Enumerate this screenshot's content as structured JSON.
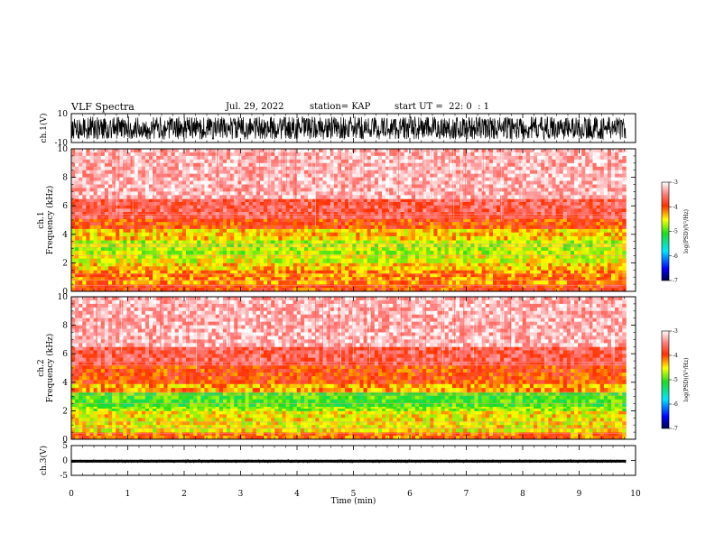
{
  "header": {
    "title": "VLF Spectra",
    "date": "Jul. 29, 2022",
    "station": "station= KAP",
    "start": "start UT =  22: 0  : 1"
  },
  "chart_data": [
    {
      "type": "line",
      "id": "ch1-waveform",
      "ylabel": "ch.1(V)",
      "ylim": [
        -10,
        10
      ],
      "yticks": [
        "10",
        "-10"
      ],
      "x_range_min": [
        0,
        9.83
      ],
      "amplitude_range_v": [
        -8,
        8
      ],
      "color": "#000000"
    },
    {
      "type": "heatmap",
      "id": "ch1-spectrogram",
      "ylabel": "ch.1\nFrequency (kHz)",
      "ylim_khz": [
        0,
        10
      ],
      "yticks": [
        "0",
        "2",
        "4",
        "6",
        "8",
        "10"
      ],
      "x_range_min": [
        0,
        9.83
      ],
      "bands": [
        {
          "from_khz": 0.0,
          "to_khz": 0.5,
          "log_psd": -4.0
        },
        {
          "from_khz": 0.5,
          "to_khz": 1.5,
          "log_psd": -4.2
        },
        {
          "from_khz": 1.5,
          "to_khz": 2.0,
          "log_psd": -4.4
        },
        {
          "from_khz": 2.0,
          "to_khz": 2.6,
          "log_psd": -4.6
        },
        {
          "from_khz": 2.6,
          "to_khz": 3.6,
          "log_psd": -4.7
        },
        {
          "from_khz": 3.6,
          "to_khz": 4.4,
          "log_psd": -4.4
        },
        {
          "from_khz": 4.4,
          "to_khz": 5.1,
          "log_psd": -4.0
        },
        {
          "from_khz": 5.1,
          "to_khz": 6.5,
          "log_psd": -3.7
        },
        {
          "from_khz": 6.5,
          "to_khz": 10.0,
          "log_psd": -3.3
        }
      ]
    },
    {
      "type": "heatmap",
      "id": "ch2-spectrogram",
      "ylabel": "ch.2\nFrequency (kHz)",
      "ylim_khz": [
        0,
        10
      ],
      "yticks": [
        "0",
        "2",
        "4",
        "6",
        "8",
        "10"
      ],
      "x_range_min": [
        0,
        9.83
      ],
      "bands": [
        {
          "from_khz": 0.0,
          "to_khz": 0.5,
          "log_psd": -4.1
        },
        {
          "from_khz": 0.5,
          "to_khz": 2.0,
          "log_psd": -4.5
        },
        {
          "from_khz": 2.0,
          "to_khz": 2.3,
          "log_psd": -4.8
        },
        {
          "from_khz": 2.3,
          "to_khz": 3.3,
          "log_psd": -5.0
        },
        {
          "from_khz": 3.3,
          "to_khz": 3.9,
          "log_psd": -4.3
        },
        {
          "from_khz": 3.9,
          "to_khz": 5.2,
          "log_psd": -4.0
        },
        {
          "from_khz": 5.2,
          "to_khz": 6.5,
          "log_psd": -3.7
        },
        {
          "from_khz": 6.5,
          "to_khz": 10.0,
          "log_psd": -3.3
        }
      ]
    },
    {
      "type": "line",
      "id": "ch3-waveform",
      "ylabel": "ch.3(V)",
      "ylim": [
        -5,
        5
      ],
      "yticks": [
        "5",
        "0",
        "-5"
      ],
      "x_range_min": [
        0,
        9.83
      ],
      "amplitude_range_v": [
        -0.7,
        0.2
      ],
      "color": "#000000"
    }
  ],
  "x_axis": {
    "label": "Time (min)",
    "range": [
      0,
      10
    ],
    "ticks": [
      "0",
      "1",
      "2",
      "3",
      "4",
      "5",
      "6",
      "7",
      "8",
      "9",
      "10"
    ]
  },
  "colorbars": [
    {
      "label": "log(PSD)(V²/Hz)",
      "range": [
        -7,
        -3
      ],
      "ticks": [
        "-3",
        "-4",
        "-5",
        "-6",
        "-7"
      ]
    },
    {
      "label": "log(PSD)(V²/Hz)",
      "range": [
        -7,
        -3
      ],
      "ticks": [
        "-3",
        "-4",
        "-5",
        "-6",
        "-7"
      ]
    }
  ]
}
